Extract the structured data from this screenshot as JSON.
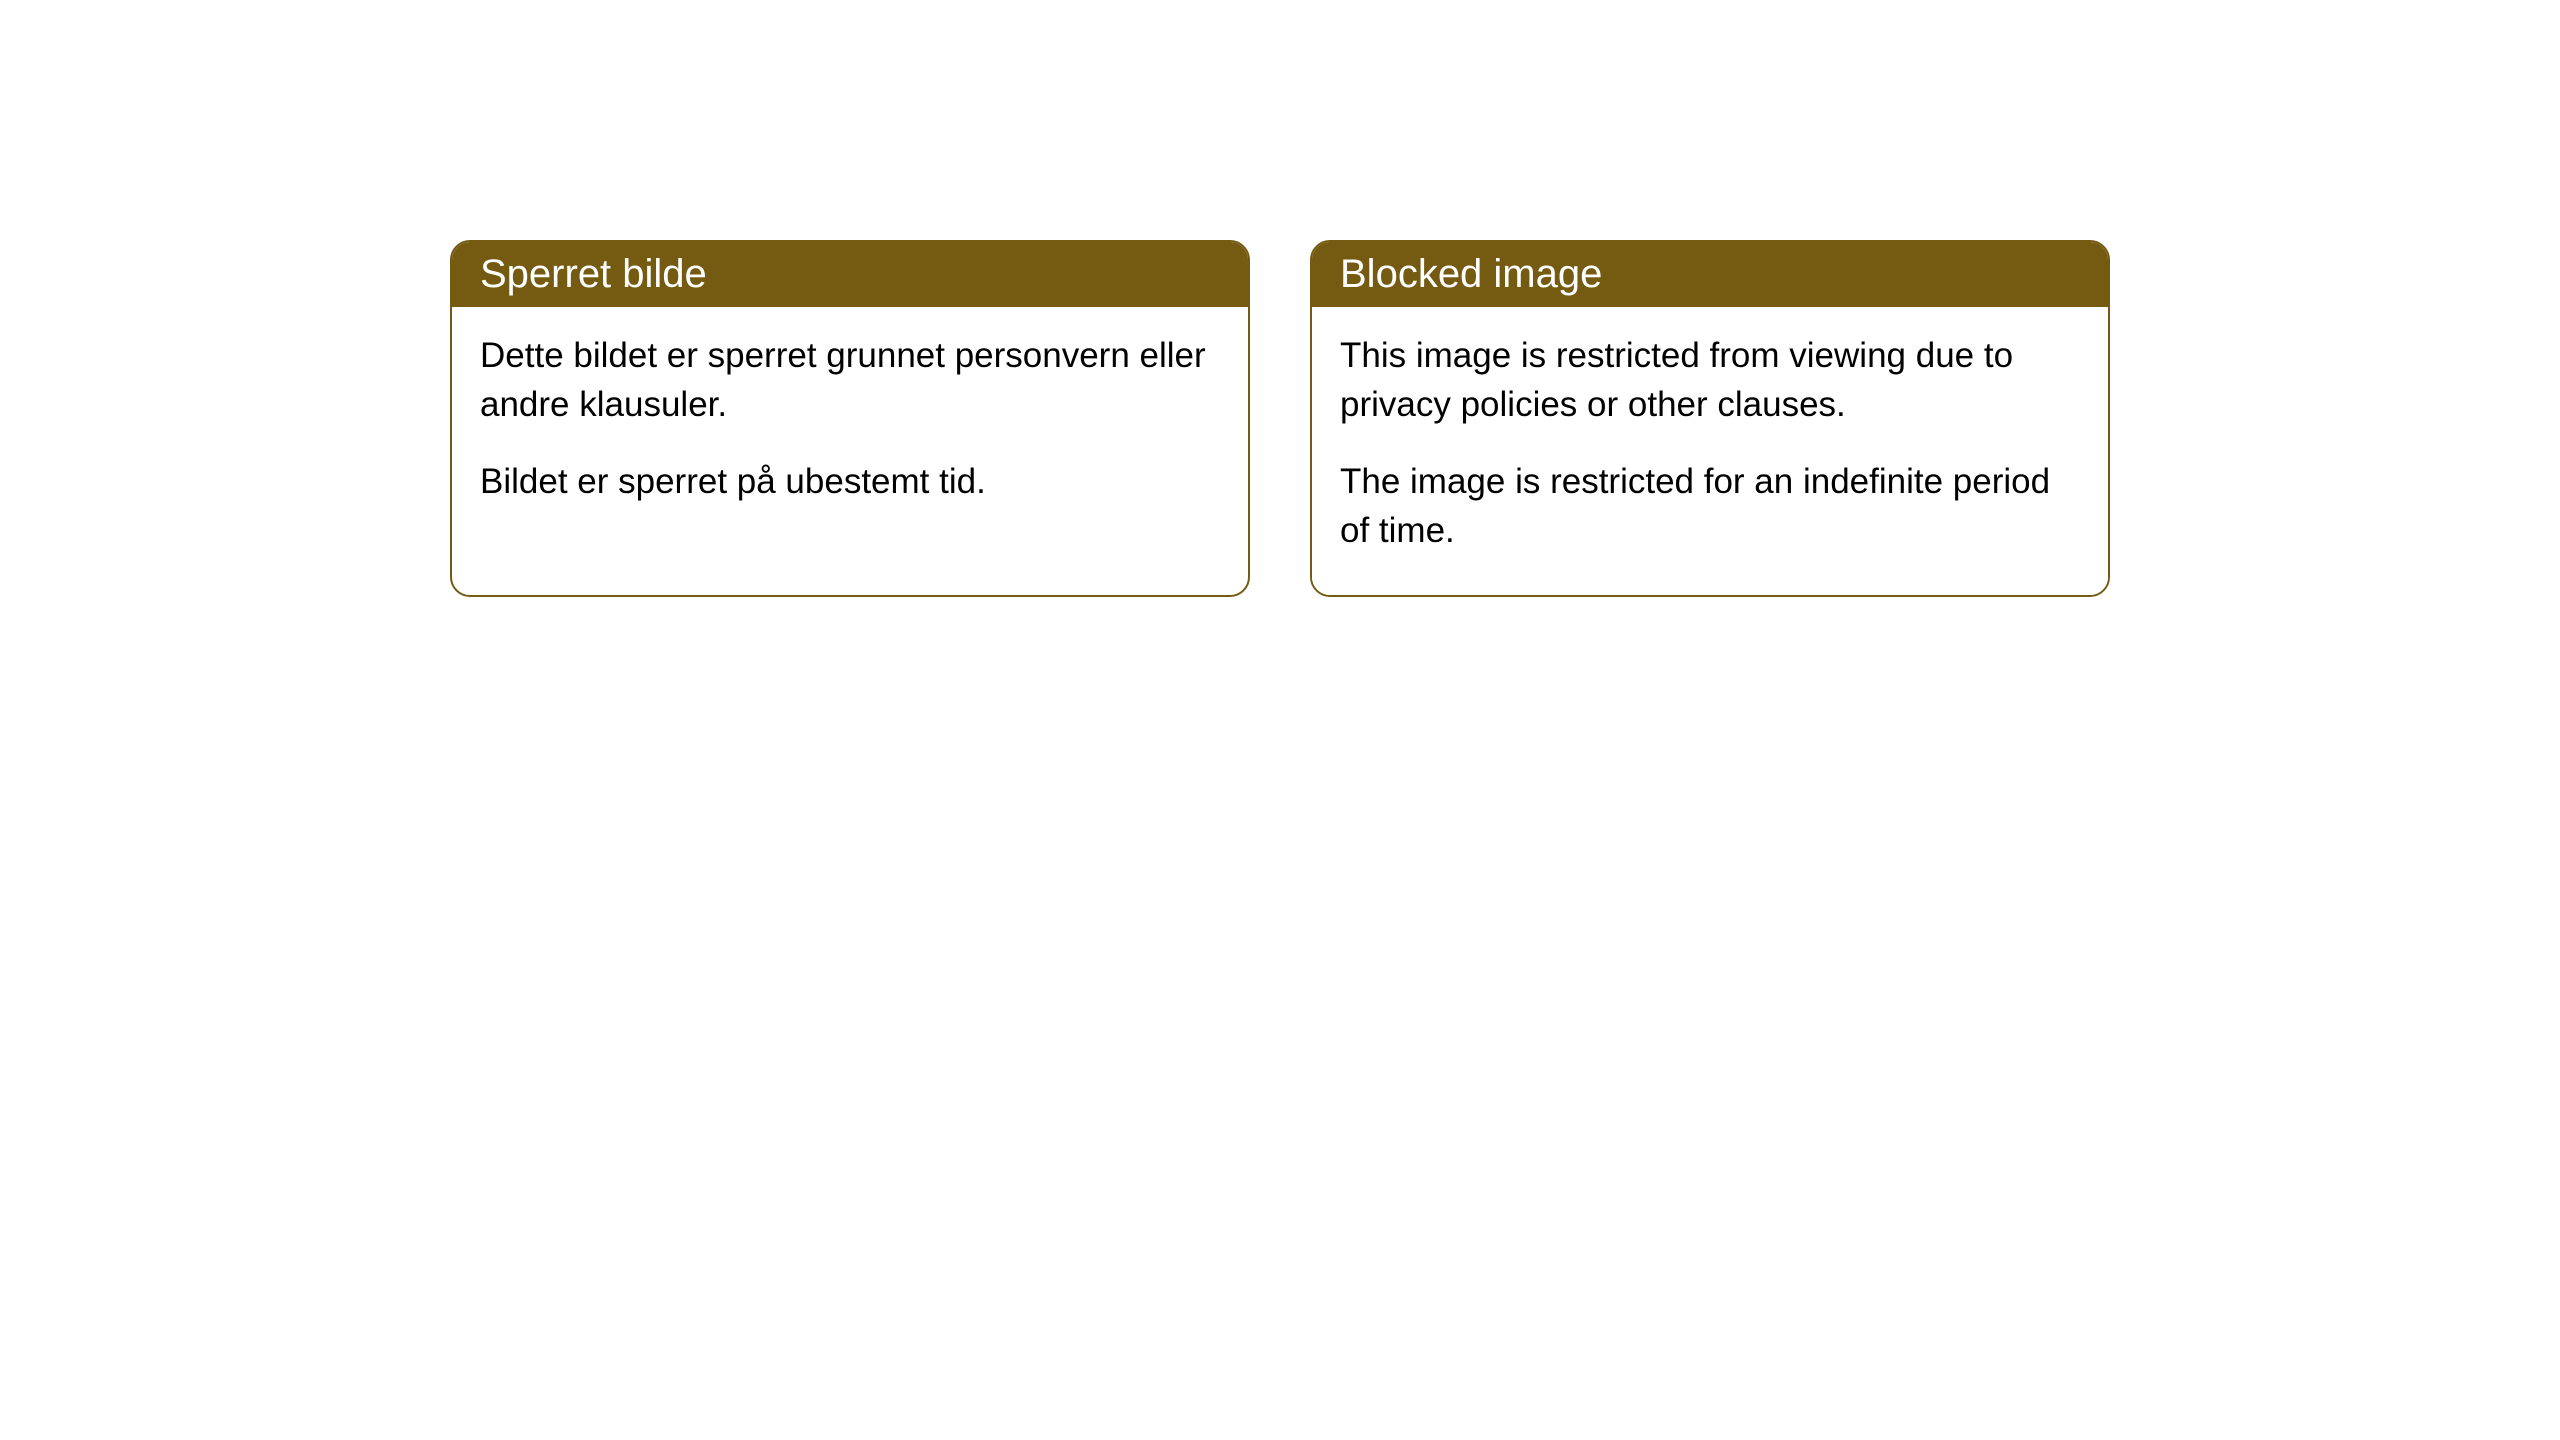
{
  "cards": [
    {
      "title": "Sperret bilde",
      "paragraph1": "Dette bildet er sperret grunnet personvern eller andre klausuler.",
      "paragraph2": "Bildet er sperret på ubestemt tid."
    },
    {
      "title": "Blocked image",
      "paragraph1": "This image is restricted from viewing due to privacy policies or other clauses.",
      "paragraph2": "The image is restricted for an indefinite period of time."
    }
  ],
  "styling": {
    "header_bg_color": "#755a11",
    "header_text_color": "#ffffff",
    "border_color": "#755a11",
    "body_bg_color": "#ffffff",
    "body_text_color": "#000000",
    "border_radius": 20,
    "header_fontsize": 40,
    "body_fontsize": 35
  }
}
